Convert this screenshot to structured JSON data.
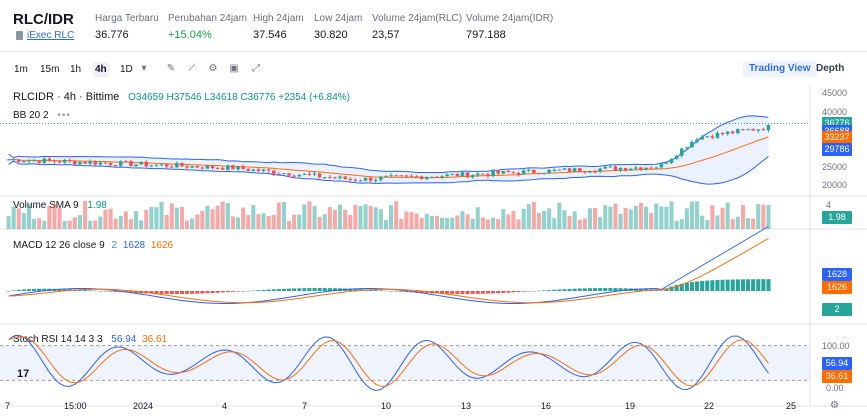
{
  "header": {
    "pair": "RLC/IDR",
    "sub_label": "iExec RLC",
    "stats": [
      {
        "label": "Harga Terbaru",
        "value": "36.776",
        "up": false
      },
      {
        "label": "Perubahan 24jam",
        "value": "+15.04%",
        "up": true
      },
      {
        "label": "High 24jam",
        "value": "37.546",
        "up": false
      },
      {
        "label": "Low 24jam",
        "value": "30.820",
        "up": false
      },
      {
        "label": "Volume 24jam(RLC)",
        "value": "23,57",
        "up": false
      },
      {
        "label": "Volume 24jam(IDR)",
        "value": "797.188",
        "up": false
      }
    ]
  },
  "toolbar": {
    "timeframes": [
      "1m",
      "15m",
      "1h",
      "4h",
      "1D"
    ],
    "active_timeframe": "4h",
    "tools": [
      "dropdown-icon",
      "draw-icon",
      "indicators-icon",
      "settings-icon",
      "save-icon",
      "fullscreen-icon"
    ],
    "view_tabs": [
      "Trading View",
      "Depth"
    ],
    "active_view": "Trading View"
  },
  "legend": {
    "symbol": "RLCIDR · 4h · Bittime",
    "ohlc": "O34659 H37546 L34618 C36776 +2354 (+6.84%)",
    "bb": "BB 20 2",
    "volume_label": "Volume SMA 9",
    "volume_value": "1.98",
    "macd_label": "MACD 12 26 close 9",
    "macd_v1": "2",
    "macd_v2": "1628",
    "macd_v3": "1626",
    "stoch_label": "Stoch RSI 14 14 3 3",
    "stoch_v1": "56.94",
    "stoch_v2": "36.61"
  },
  "price_axis": [
    "45000",
    "40000",
    "35000",
    "30000",
    "25000",
    "20000"
  ],
  "price_labels": [
    {
      "value": "36776",
      "color": "#26a69a"
    },
    {
      "value": "36688",
      "color": "#2962ff"
    },
    {
      "value": "33237",
      "color": "#ff6d00"
    },
    {
      "value": "29786",
      "color": "#2962ff"
    }
  ],
  "volume_axis": [
    "4"
  ],
  "volume_label_value": "1.98",
  "macd_labels": [
    {
      "value": "1628",
      "color": "#2962ff"
    },
    {
      "value": "1626",
      "color": "#ff6d00"
    },
    {
      "value": "2",
      "color": "#26a69a"
    }
  ],
  "stoch_labels": [
    {
      "value": "56.94",
      "color": "#2962ff"
    },
    {
      "value": "36.61",
      "color": "#ff6d00"
    }
  ],
  "stoch_axis": [
    "100.00",
    "0.00"
  ],
  "time_axis": [
    "7",
    "15:00",
    "2024",
    "4",
    "7",
    "10",
    "13",
    "16",
    "19",
    "22",
    "25"
  ],
  "colors": {
    "up": "#26a69a",
    "down": "#ef5350",
    "bb": "#2962ff",
    "basis": "#ff6d00"
  }
}
